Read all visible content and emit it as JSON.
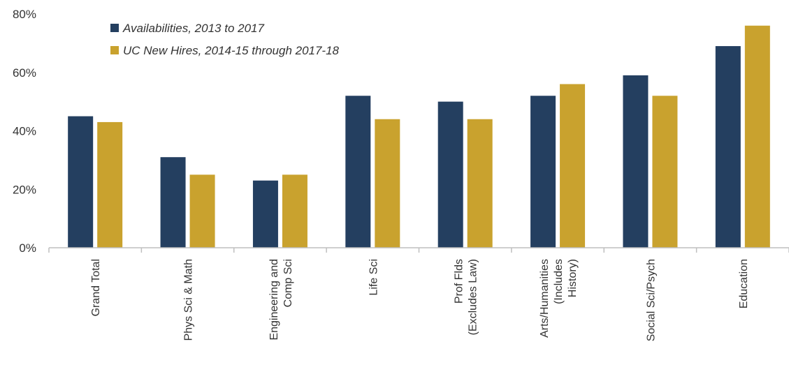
{
  "chart_data": {
    "type": "bar",
    "title": "",
    "xlabel": "",
    "ylabel": "",
    "categories": [
      [
        "Grand Total"
      ],
      [
        "Phys Sci & Math"
      ],
      [
        "Engineering and",
        "Comp Sci"
      ],
      [
        "Life Sci"
      ],
      [
        "Prof Flds",
        "(Excludes Law)"
      ],
      [
        "Arts/Humanities",
        "(Includes",
        "History)"
      ],
      [
        "Social Sci/Psych"
      ],
      [
        "Education"
      ]
    ],
    "series": [
      {
        "name": "Availabilities, 2013 to 2017",
        "color": "#243F60",
        "values": [
          45,
          31,
          23,
          52,
          50,
          52,
          59,
          69
        ]
      },
      {
        "name": "UC New Hires, 2014-15 through 2017-18",
        "color": "#C9A22E",
        "values": [
          43,
          25,
          25,
          44,
          44,
          56,
          52,
          76
        ]
      }
    ],
    "ylim": [
      0,
      80
    ],
    "yticks": [
      0,
      20,
      40,
      60,
      80
    ],
    "ytick_labels": [
      "0%",
      "20%",
      "40%",
      "60%",
      "80%"
    ],
    "grid": false,
    "legend": "top-left"
  }
}
